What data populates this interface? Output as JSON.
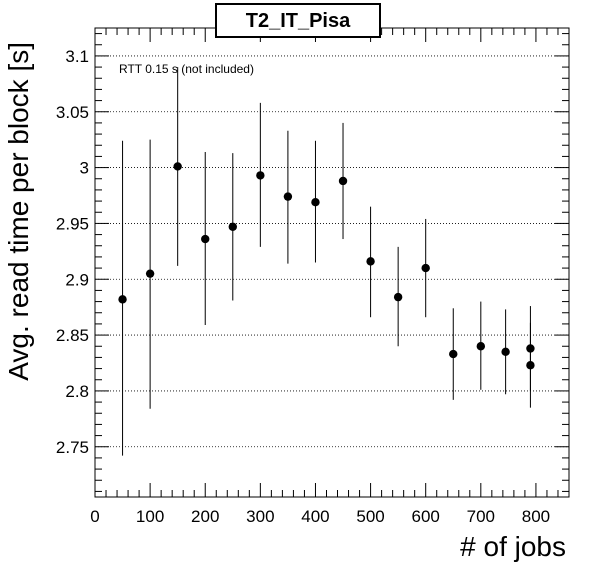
{
  "chart_data": {
    "type": "scatter",
    "title": "T2_IT_Pisa",
    "xlabel": "# of jobs",
    "ylabel": "Avg. read time per block [s]",
    "annotation": "RTT 0.15 s (not included)",
    "xlim": [
      0,
      860
    ],
    "ylim": [
      2.705,
      3.125
    ],
    "x_ticks": [
      0,
      100,
      200,
      300,
      400,
      500,
      600,
      700,
      800
    ],
    "x_tick_labels": [
      "0",
      "100",
      "200",
      "300",
      "400",
      "500",
      "600",
      "700",
      "800"
    ],
    "y_ticks": [
      2.75,
      2.8,
      2.85,
      2.9,
      2.95,
      3.0,
      3.05,
      3.1
    ],
    "y_tick_labels": [
      "2.75",
      "2.8",
      "2.85",
      "2.9",
      "2.95",
      "3",
      "3.05",
      "3.1"
    ],
    "grid": {
      "x": false,
      "y": true,
      "style": "dotted"
    },
    "legend": "none",
    "error_bars": true,
    "points": [
      {
        "x": 50,
        "y": 2.882,
        "err_low": 2.742,
        "err_high": 3.024
      },
      {
        "x": 100,
        "y": 2.905,
        "err_low": 2.784,
        "err_high": 3.025
      },
      {
        "x": 150,
        "y": 3.001,
        "err_low": 2.912,
        "err_high": 3.09
      },
      {
        "x": 200,
        "y": 2.936,
        "err_low": 2.859,
        "err_high": 3.014
      },
      {
        "x": 250,
        "y": 2.947,
        "err_low": 2.881,
        "err_high": 3.013
      },
      {
        "x": 300,
        "y": 2.993,
        "err_low": 2.929,
        "err_high": 3.058
      },
      {
        "x": 350,
        "y": 2.974,
        "err_low": 2.914,
        "err_high": 3.033
      },
      {
        "x": 400,
        "y": 2.969,
        "err_low": 2.915,
        "err_high": 3.024
      },
      {
        "x": 450,
        "y": 2.988,
        "err_low": 2.936,
        "err_high": 3.04
      },
      {
        "x": 500,
        "y": 2.916,
        "err_low": 2.866,
        "err_high": 2.965
      },
      {
        "x": 550,
        "y": 2.884,
        "err_low": 2.84,
        "err_high": 2.929
      },
      {
        "x": 600,
        "y": 2.91,
        "err_low": 2.866,
        "err_high": 2.954
      },
      {
        "x": 650,
        "y": 2.833,
        "err_low": 2.792,
        "err_high": 2.874
      },
      {
        "x": 700,
        "y": 2.84,
        "err_low": 2.801,
        "err_high": 2.88
      },
      {
        "x": 745,
        "y": 2.835,
        "err_low": 2.797,
        "err_high": 2.873
      },
      {
        "x": 790,
        "y": 2.838,
        "err_low": 2.8,
        "err_high": 2.876
      },
      {
        "x": 790,
        "y": 2.823,
        "err_low": 2.785,
        "err_high": 2.861
      }
    ],
    "colors": {
      "marker": "#000000",
      "frame": "#000000",
      "grid": "#000000"
    }
  }
}
